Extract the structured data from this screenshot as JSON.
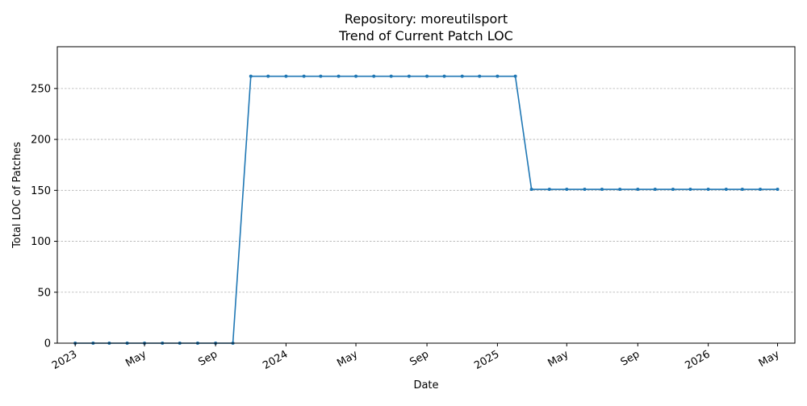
{
  "chart_data": {
    "type": "line",
    "title": "Repository: moreutilsport",
    "subtitle": "Trend of Current Patch LOC",
    "xlabel": "Date",
    "ylabel": "Total LOC of Patches",
    "ylim": [
      0,
      291
    ],
    "yticks": [
      0,
      50,
      100,
      150,
      200,
      250
    ],
    "xlim": [
      "2022-12-01",
      "2026-05-31"
    ],
    "xticks": [
      {
        "date": "2023-01-01",
        "label": "2023"
      },
      {
        "date": "2023-05-01",
        "label": "May"
      },
      {
        "date": "2023-09-01",
        "label": "Sep"
      },
      {
        "date": "2024-01-01",
        "label": "2024"
      },
      {
        "date": "2024-05-01",
        "label": "May"
      },
      {
        "date": "2024-09-01",
        "label": "Sep"
      },
      {
        "date": "2025-01-01",
        "label": "2025"
      },
      {
        "date": "2025-05-01",
        "label": "May"
      },
      {
        "date": "2025-09-01",
        "label": "Sep"
      },
      {
        "date": "2026-01-01",
        "label": "2026"
      },
      {
        "date": "2026-05-01",
        "label": "May"
      }
    ],
    "grid": "y",
    "line_color": "#1f77b4",
    "series": [
      {
        "x": [
          "2023-01-01",
          "2023-02-01",
          "2023-03-01",
          "2023-04-01",
          "2023-05-01",
          "2023-06-01",
          "2023-07-01",
          "2023-08-01",
          "2023-09-01",
          "2023-10-01",
          "2023-11-01",
          "2023-12-01",
          "2024-01-01",
          "2024-02-01",
          "2024-03-01",
          "2024-04-01",
          "2024-05-01",
          "2024-06-01",
          "2024-07-01",
          "2024-08-01",
          "2024-09-01",
          "2024-10-01",
          "2024-11-01",
          "2024-12-01",
          "2025-01-01",
          "2025-02-01",
          "2025-03-01",
          "2025-04-01",
          "2025-05-01",
          "2025-06-01",
          "2025-07-01",
          "2025-08-01",
          "2025-09-01",
          "2025-10-01",
          "2025-11-01",
          "2025-12-01",
          "2026-01-01",
          "2026-02-01",
          "2026-03-01",
          "2026-04-01",
          "2026-05-01"
        ],
        "values": [
          0,
          0,
          0,
          0,
          0,
          0,
          0,
          0,
          0,
          0,
          262,
          262,
          262,
          262,
          262,
          262,
          262,
          262,
          262,
          262,
          262,
          262,
          262,
          262,
          262,
          262,
          151,
          151,
          151,
          151,
          151,
          151,
          151,
          151,
          151,
          151,
          151,
          151,
          151,
          151,
          151
        ]
      }
    ]
  }
}
